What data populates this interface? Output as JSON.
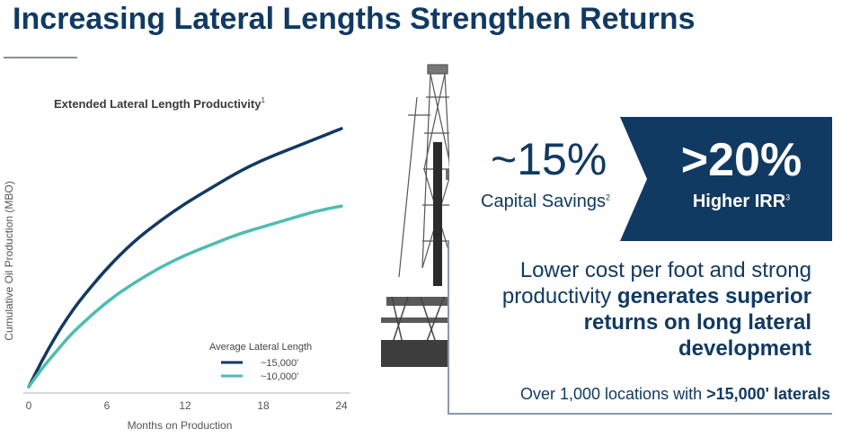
{
  "title": "Increasing Lateral Lengths Strengthen Returns",
  "colors": {
    "navy": "#113a62",
    "teal": "#4dbdb0"
  },
  "chart_data": {
    "type": "line",
    "title": "Extended Lateral Length Productivity",
    "title_footnote": "1",
    "xlabel": "Months on Production",
    "ylabel": "Cumulative Oil Production (MBO)",
    "xlim": [
      0,
      24
    ],
    "xticks": [
      0,
      6,
      12,
      18,
      24
    ],
    "y_tick_labels": "none",
    "grid": false,
    "legend_title": "Average Lateral Length",
    "legend_position": "bottom-right",
    "series": [
      {
        "name": "~15,000'",
        "color": "#113a62",
        "x": [
          0,
          1,
          2,
          3,
          4,
          6,
          8,
          10,
          12,
          14,
          16,
          18,
          20,
          22,
          24
        ],
        "y": [
          0,
          0.1,
          0.19,
          0.27,
          0.34,
          0.46,
          0.56,
          0.64,
          0.71,
          0.77,
          0.83,
          0.88,
          0.92,
          0.96,
          1.0
        ]
      },
      {
        "name": "~10,000'",
        "color": "#4dbdb0",
        "x": [
          0,
          1,
          2,
          3,
          4,
          6,
          8,
          10,
          12,
          14,
          16,
          18,
          20,
          22,
          24
        ],
        "y": [
          0,
          0.07,
          0.13,
          0.19,
          0.24,
          0.33,
          0.4,
          0.46,
          0.51,
          0.55,
          0.59,
          0.62,
          0.65,
          0.68,
          0.7
        ]
      }
    ]
  },
  "callouts": {
    "capital_value": "~15%",
    "capital_label": "Capital Savings",
    "capital_footnote": "2",
    "irr_value": ">20%",
    "irr_label": "Higher IRR",
    "irr_footnote": "3"
  },
  "statement": {
    "plain": "Lower cost per foot and strong productivity ",
    "bold": "generates superior returns on long lateral development"
  },
  "bottom": {
    "plain": "Over 1,000 locations with ",
    "bold": ">15,000' laterals"
  }
}
